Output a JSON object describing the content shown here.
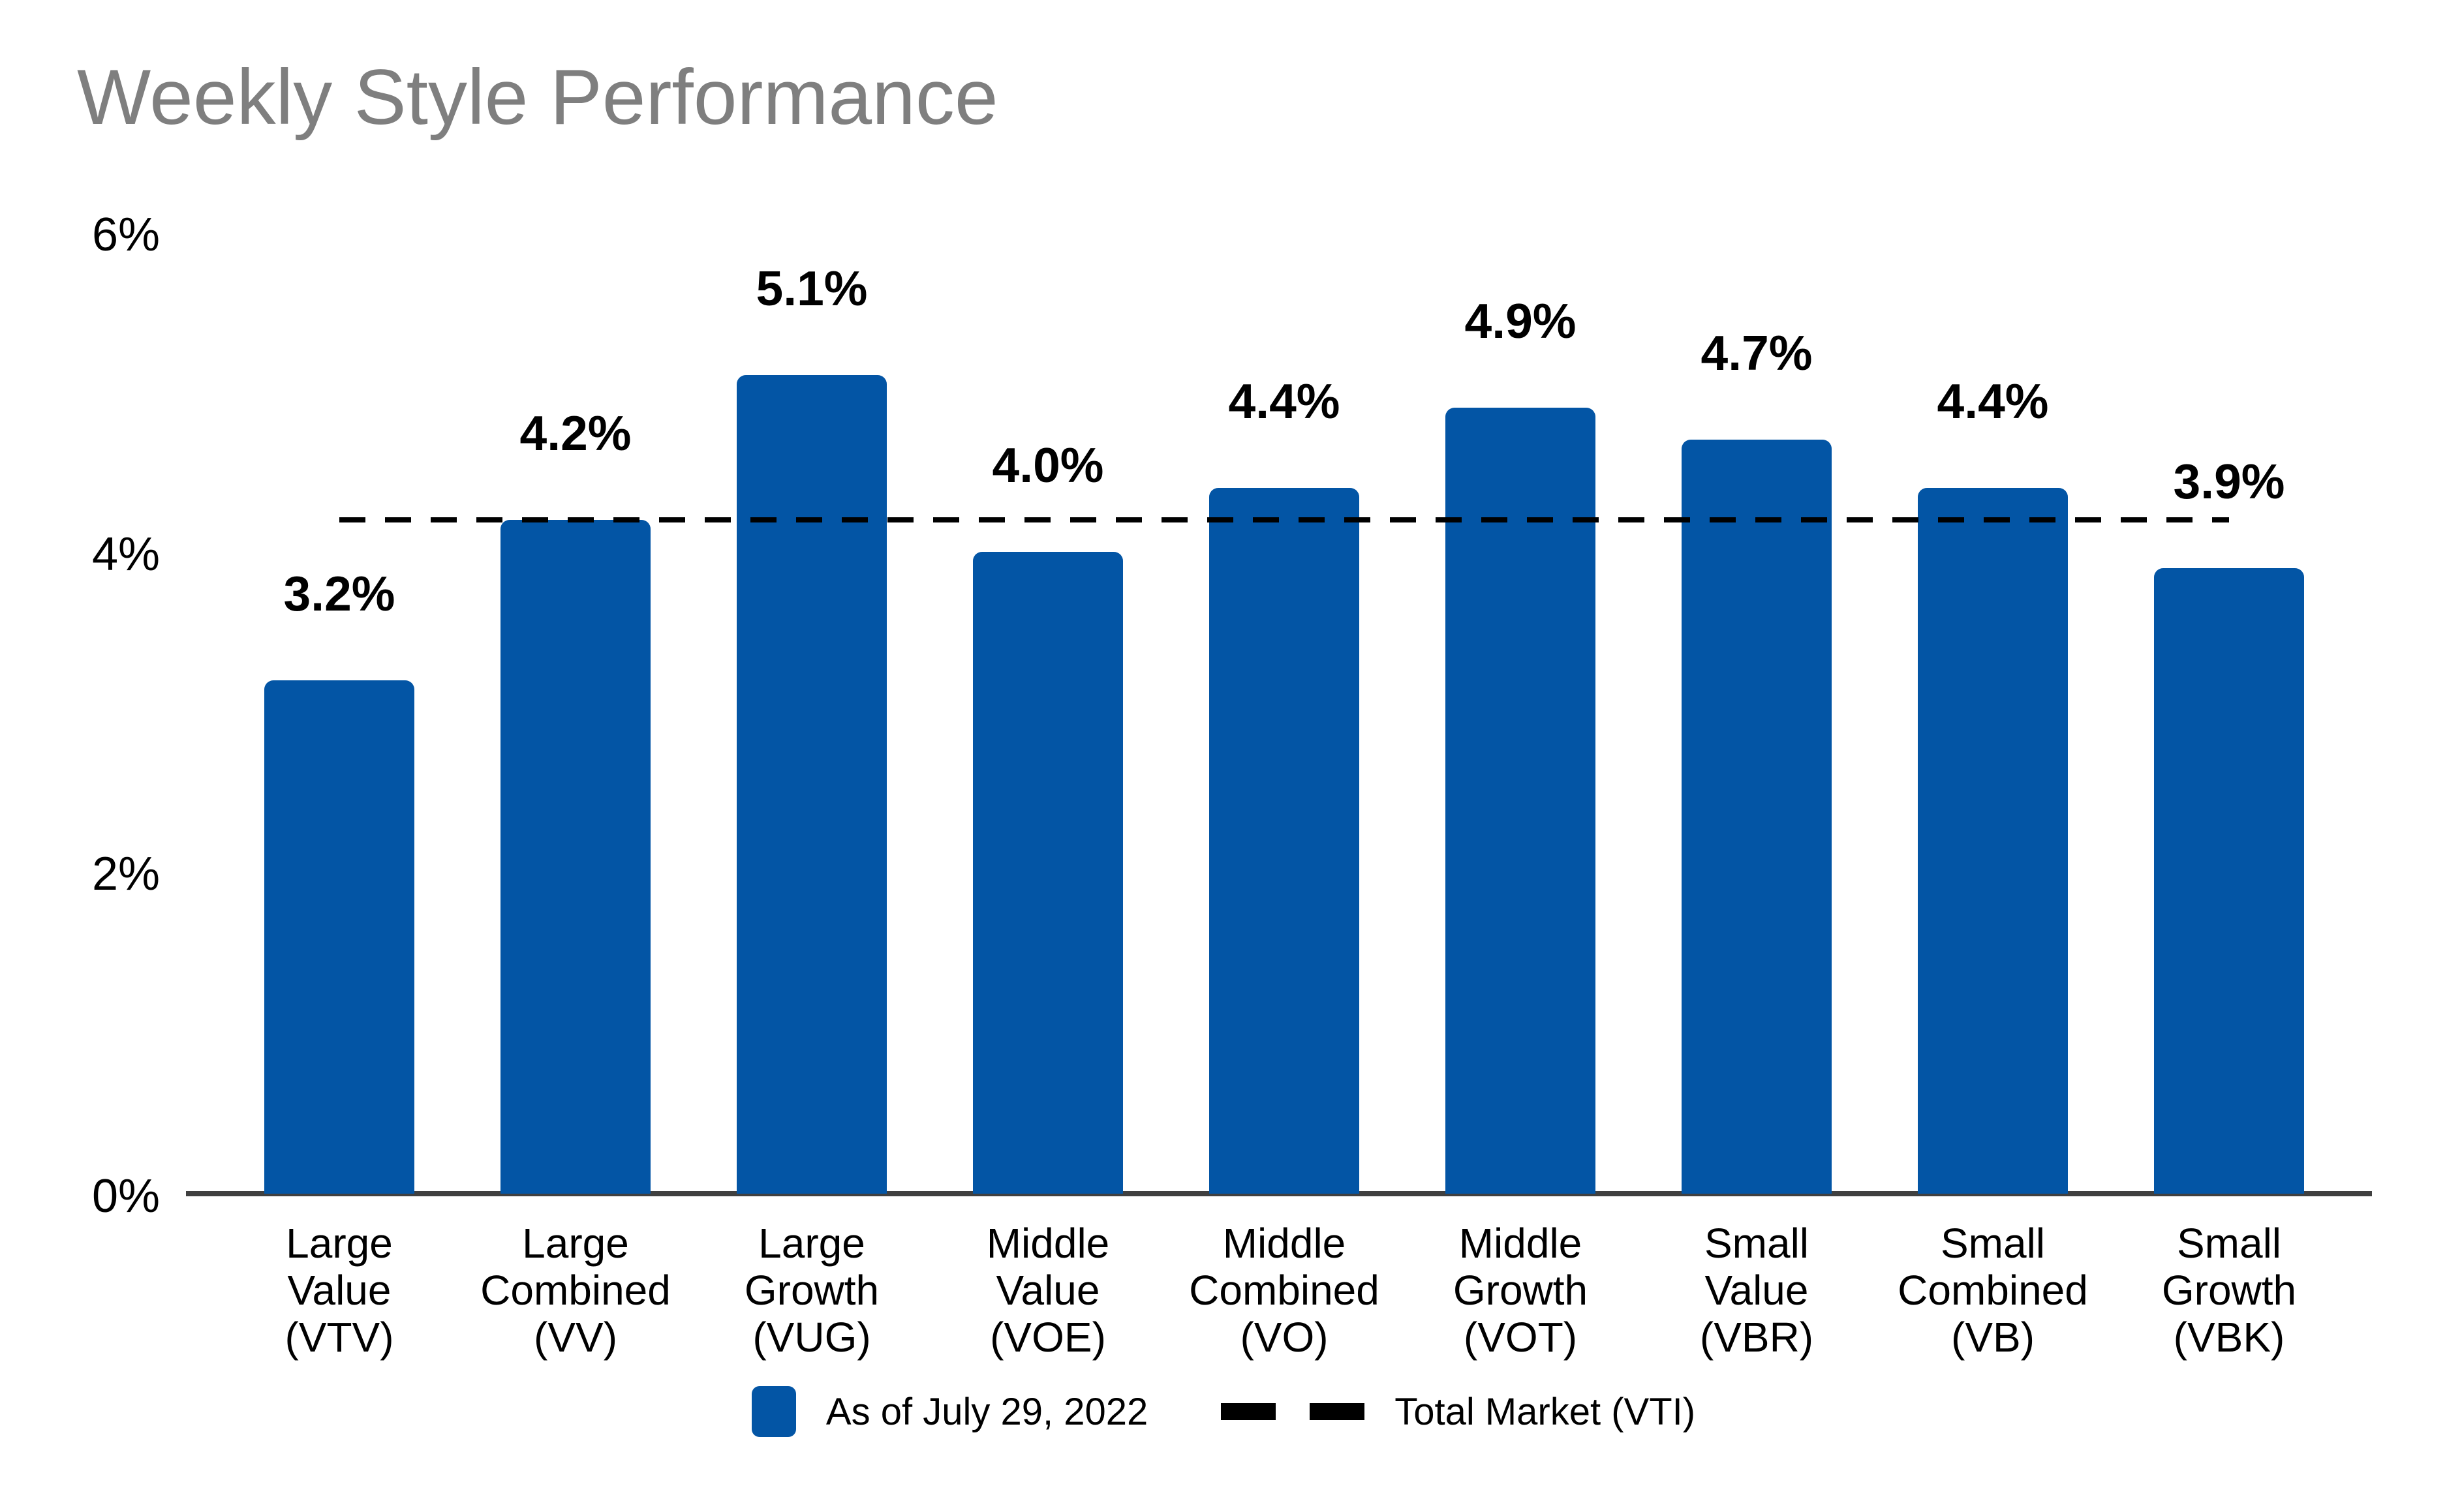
{
  "title": "Weekly Style Performance",
  "colors": {
    "bar": "#0355a5",
    "title_text": "#7f7f7f",
    "axis_line": "#404040",
    "text": "#000000",
    "dashed_line": "#000000"
  },
  "chart_data": {
    "type": "bar",
    "title": "Weekly Style Performance",
    "xlabel": "",
    "ylabel": "",
    "ylim": [
      0,
      6
    ],
    "yticks": [
      "0%",
      "2%",
      "4%",
      "6%"
    ],
    "ytick_values": [
      0,
      2,
      4,
      6
    ],
    "grid": false,
    "legend_position": "bottom",
    "categories": [
      "Large Value (VTV)",
      "Large Combined (VV)",
      "Large Growth (VUG)",
      "Middle Value (VOE)",
      "Middle Combined (VO)",
      "Middle Growth (VOT)",
      "Small Value (VBR)",
      "Small Combined (VB)",
      "Small Growth (VBK)"
    ],
    "categories_lines": [
      [
        "Large",
        "Value",
        "(VTV)"
      ],
      [
        "Large",
        "Combined",
        "(VV)"
      ],
      [
        "Large",
        "Growth",
        "(VUG)"
      ],
      [
        "Middle",
        "Value",
        "(VOE)"
      ],
      [
        "Middle",
        "Combined",
        "(VO)"
      ],
      [
        "Middle",
        "Growth",
        "(VOT)"
      ],
      [
        "Small",
        "Value",
        "(VBR)"
      ],
      [
        "Small",
        "Combined",
        "(VB)"
      ],
      [
        "Small",
        "Growth",
        "(VBK)"
      ]
    ],
    "values": [
      3.2,
      4.2,
      5.1,
      4.0,
      4.4,
      4.9,
      4.7,
      4.4,
      3.9
    ],
    "value_labels": [
      "3.2%",
      "4.2%",
      "5.1%",
      "4.0%",
      "4.4%",
      "4.9%",
      "4.7%",
      "4.4%",
      "3.9%"
    ],
    "reference_line": {
      "name": "Total Market (VTI)",
      "value": 4.2,
      "style": "dashed",
      "color": "#000000"
    },
    "legend": [
      {
        "label": "As of July 29, 2022",
        "marker": "blue-bar-swatch"
      },
      {
        "label": "Total Market (VTI)",
        "marker": "black-dashed-line"
      }
    ]
  }
}
